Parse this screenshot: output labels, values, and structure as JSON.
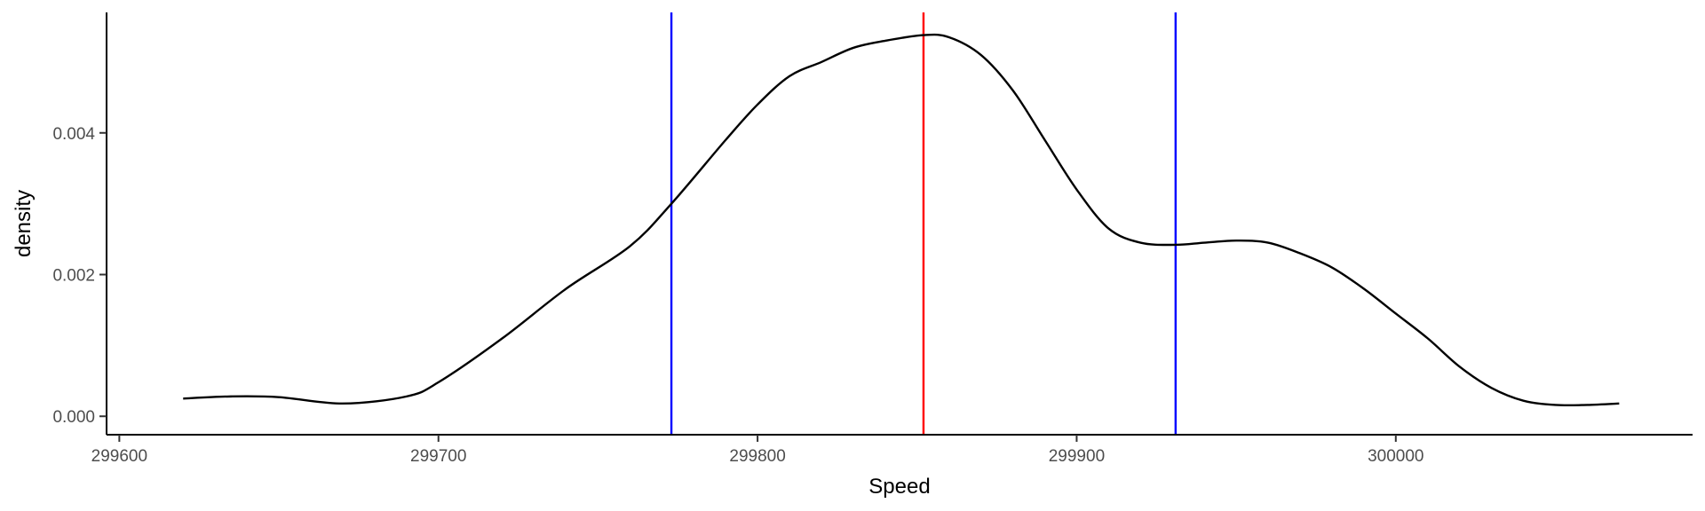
{
  "chart_data": {
    "type": "line",
    "title": "",
    "xlabel": "Speed",
    "ylabel": "density",
    "xlim": [
      299596,
      300093
    ],
    "ylim": [
      -0.00026,
      0.0057
    ],
    "x_ticks": [
      {
        "value": 299600,
        "label": "299600"
      },
      {
        "value": 299700,
        "label": "299700"
      },
      {
        "value": 299800,
        "label": "299800"
      },
      {
        "value": 299900,
        "label": "299900"
      },
      {
        "value": 300000,
        "label": "300000"
      }
    ],
    "y_ticks": [
      {
        "value": 0.0,
        "label": "0.000"
      },
      {
        "value": 0.002,
        "label": "0.002"
      },
      {
        "value": 0.004,
        "label": "0.004"
      }
    ],
    "grid": false,
    "series": [
      {
        "color": "#000000",
        "x": [
          299620,
          299635,
          299650,
          299670,
          299690,
          299700,
          299720,
          299740,
          299760,
          299773,
          299790,
          299800,
          299810,
          299820,
          299830,
          299840,
          299852,
          299860,
          299870,
          299880,
          299890,
          299900,
          299910,
          299920,
          299931,
          299940,
          299950,
          299960,
          299970,
          299980,
          299990,
          300000,
          300010,
          300020,
          300030,
          300040,
          300050,
          300060,
          300070
        ],
        "y": [
          0.00025,
          0.00028,
          0.00027,
          0.00018,
          0.00028,
          0.00048,
          0.0011,
          0.0018,
          0.0024,
          0.003,
          0.0039,
          0.0044,
          0.0048,
          0.005,
          0.0052,
          0.0053,
          0.00538,
          0.00535,
          0.0051,
          0.0046,
          0.0039,
          0.0032,
          0.00265,
          0.00245,
          0.00242,
          0.00245,
          0.00248,
          0.00245,
          0.0023,
          0.0021,
          0.0018,
          0.00145,
          0.0011,
          0.0007,
          0.0004,
          0.00022,
          0.00016,
          0.00016,
          0.00018
        ]
      }
    ],
    "vlines": [
      {
        "x": 299773,
        "color": "#0000ff"
      },
      {
        "x": 299852,
        "color": "#ff0000"
      },
      {
        "x": 299931,
        "color": "#0000ff"
      }
    ]
  }
}
